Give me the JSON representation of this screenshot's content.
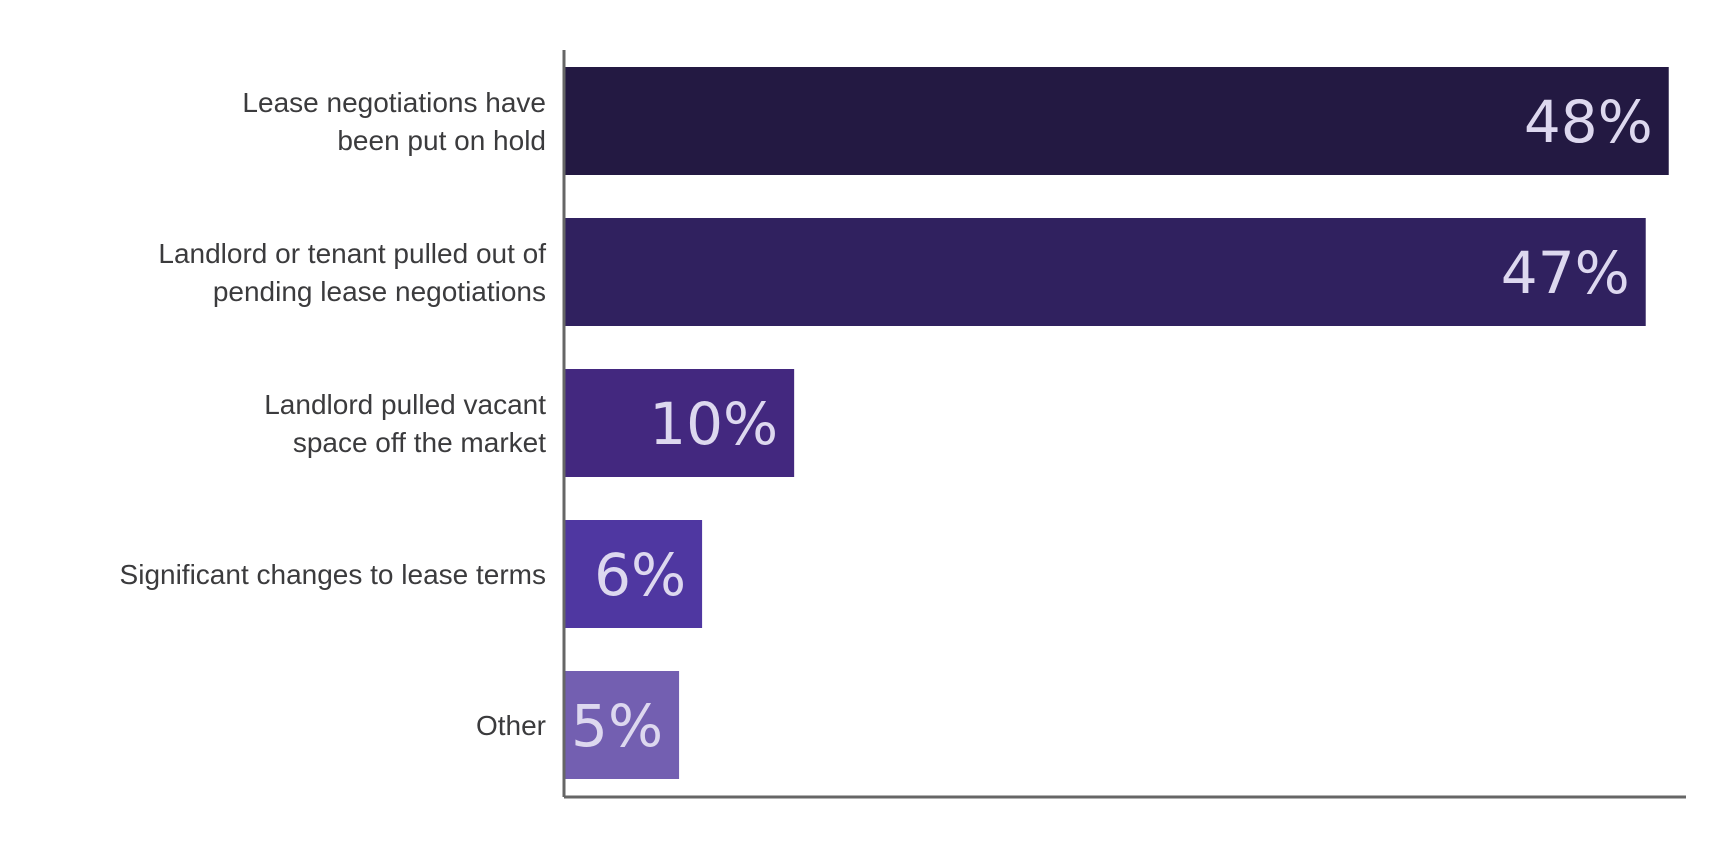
{
  "chart_data": {
    "type": "bar",
    "orientation": "horizontal",
    "categories": [
      [
        "Lease negotiations have",
        "been put on hold"
      ],
      [
        "Landlord or tenant pulled out of",
        "pending lease negotiations"
      ],
      [
        "Landlord pulled vacant",
        "space off the market"
      ],
      [
        "Significant changes to lease terms"
      ],
      [
        "Other"
      ]
    ],
    "values": [
      48,
      47,
      10,
      6,
      5
    ],
    "value_labels": [
      "48%",
      "47%",
      "10%",
      "6%",
      "5%"
    ],
    "colors": [
      "#231942",
      "#30215f",
      "#43287f",
      "#4f37a1",
      "#735fb1"
    ],
    "xlim": [
      0,
      48.75
    ],
    "grid": false,
    "legend": "none",
    "title": "",
    "xlabel": "",
    "ylabel": ""
  }
}
